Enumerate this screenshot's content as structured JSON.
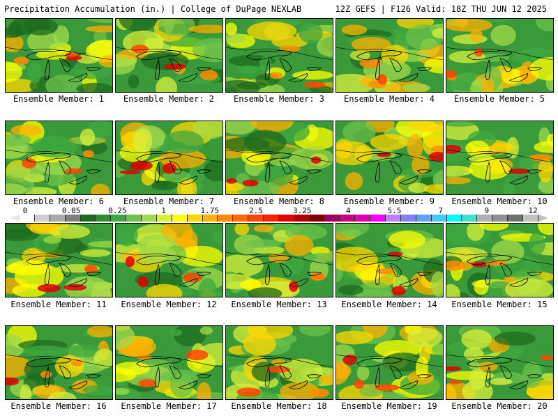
{
  "header": {
    "title_left": "Precipitation Accumulation (in.) | College of DuPage NEXLAB",
    "title_right": "12Z GEFS | F126 Valid: 18Z THU JUN 12 2025"
  },
  "colorbar": {
    "labels": [
      "0",
      "0.05",
      "0.25",
      "1",
      "1.75",
      "2.5",
      "3.25",
      "4",
      "5.5",
      "7",
      "9",
      "12"
    ],
    "colors": [
      "#ffffff",
      "#cfcfcf",
      "#a8a8a8",
      "#7f7f7f",
      "#1d6b1d",
      "#2e8b2e",
      "#3fa83f",
      "#6cc24a",
      "#a0d94a",
      "#d8ef3a",
      "#ffff00",
      "#ffd700",
      "#ffb000",
      "#ff8c00",
      "#ff6a00",
      "#ff4500",
      "#ff2000",
      "#e00000",
      "#b00000",
      "#800000",
      "#a00060",
      "#c8007f",
      "#e000b0",
      "#ff00ff",
      "#c080ff",
      "#8080ff",
      "#60a0ff",
      "#40c8ff",
      "#00ffff",
      "#40e0d0",
      "#b0b0b0",
      "#909090",
      "#707070",
      "#c0c0c0"
    ]
  },
  "members": [
    "Ensemble Member: 1",
    "Ensemble Member: 2",
    "Ensemble Member: 3",
    "Ensemble Member: 4",
    "Ensemble Member: 5",
    "Ensemble Member: 6",
    "Ensemble Member: 7",
    "Ensemble Member: 8",
    "Ensemble Member: 9",
    "Ensemble Member: 10",
    "Ensemble Member: 11",
    "Ensemble Member: 12",
    "Ensemble Member: 13",
    "Ensemble Member: 14",
    "Ensemble Member: 15",
    "Ensemble Member: 16",
    "Ensemble Member: 17",
    "Ensemble Member: 18",
    "Ensemble Member: 19",
    "Ensemble Member: 20"
  ]
}
